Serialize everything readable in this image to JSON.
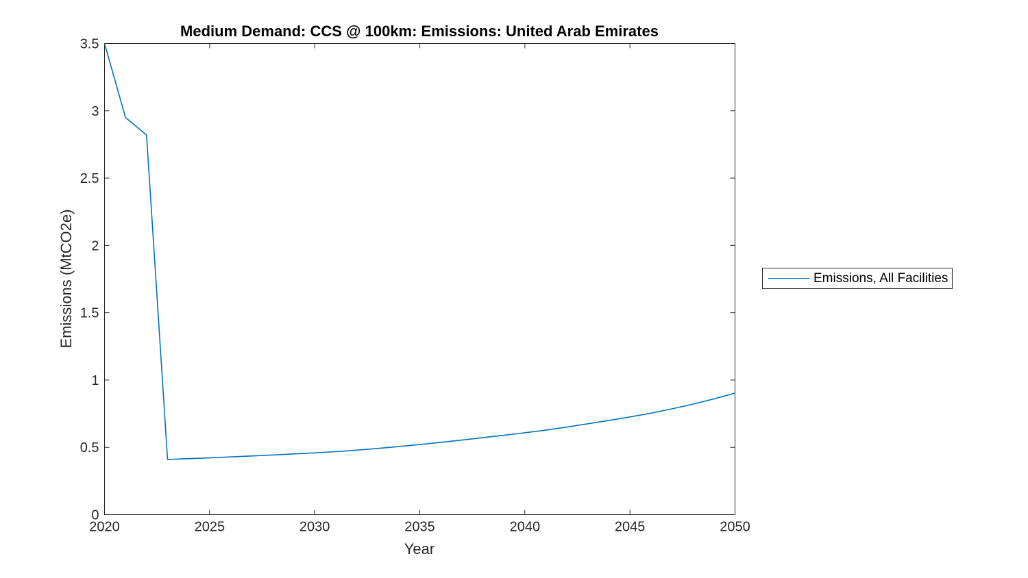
{
  "chart_data": {
    "type": "line",
    "title": "Medium Demand: CCS @ 100km: Emissions: United Arab Emirates",
    "xlabel": "Year",
    "ylabel": "Emissions (MtCO2e)",
    "xlim": [
      2020,
      2050
    ],
    "ylim": [
      0,
      3.5
    ],
    "xticks": [
      2020,
      2025,
      2030,
      2035,
      2040,
      2045,
      2050
    ],
    "yticks": [
      0,
      0.5,
      1,
      1.5,
      2,
      2.5,
      3,
      3.5
    ],
    "grid": false,
    "axis_color": "#262626",
    "tick_label_color": "#262626",
    "legend": {
      "position": "right-outside",
      "entries": [
        "Emissions, All Facilities"
      ]
    },
    "series": [
      {
        "name": "Emissions, All Facilities",
        "color": "#0072BD",
        "x": [
          2020,
          2021,
          2022,
          2023,
          2024,
          2025,
          2026,
          2027,
          2028,
          2029,
          2030,
          2031,
          2032,
          2033,
          2034,
          2035,
          2036,
          2037,
          2038,
          2039,
          2040,
          2041,
          2042,
          2043,
          2044,
          2045,
          2046,
          2047,
          2048,
          2049,
          2050
        ],
        "y": [
          3.5,
          2.95,
          2.82,
          0.41,
          0.416,
          0.422,
          0.429,
          0.436,
          0.443,
          0.451,
          0.459,
          0.468,
          0.479,
          0.492,
          0.506,
          0.521,
          0.537,
          0.554,
          0.572,
          0.59,
          0.608,
          0.628,
          0.651,
          0.675,
          0.7,
          0.726,
          0.754,
          0.786,
          0.821,
          0.86,
          0.903
        ]
      }
    ]
  }
}
